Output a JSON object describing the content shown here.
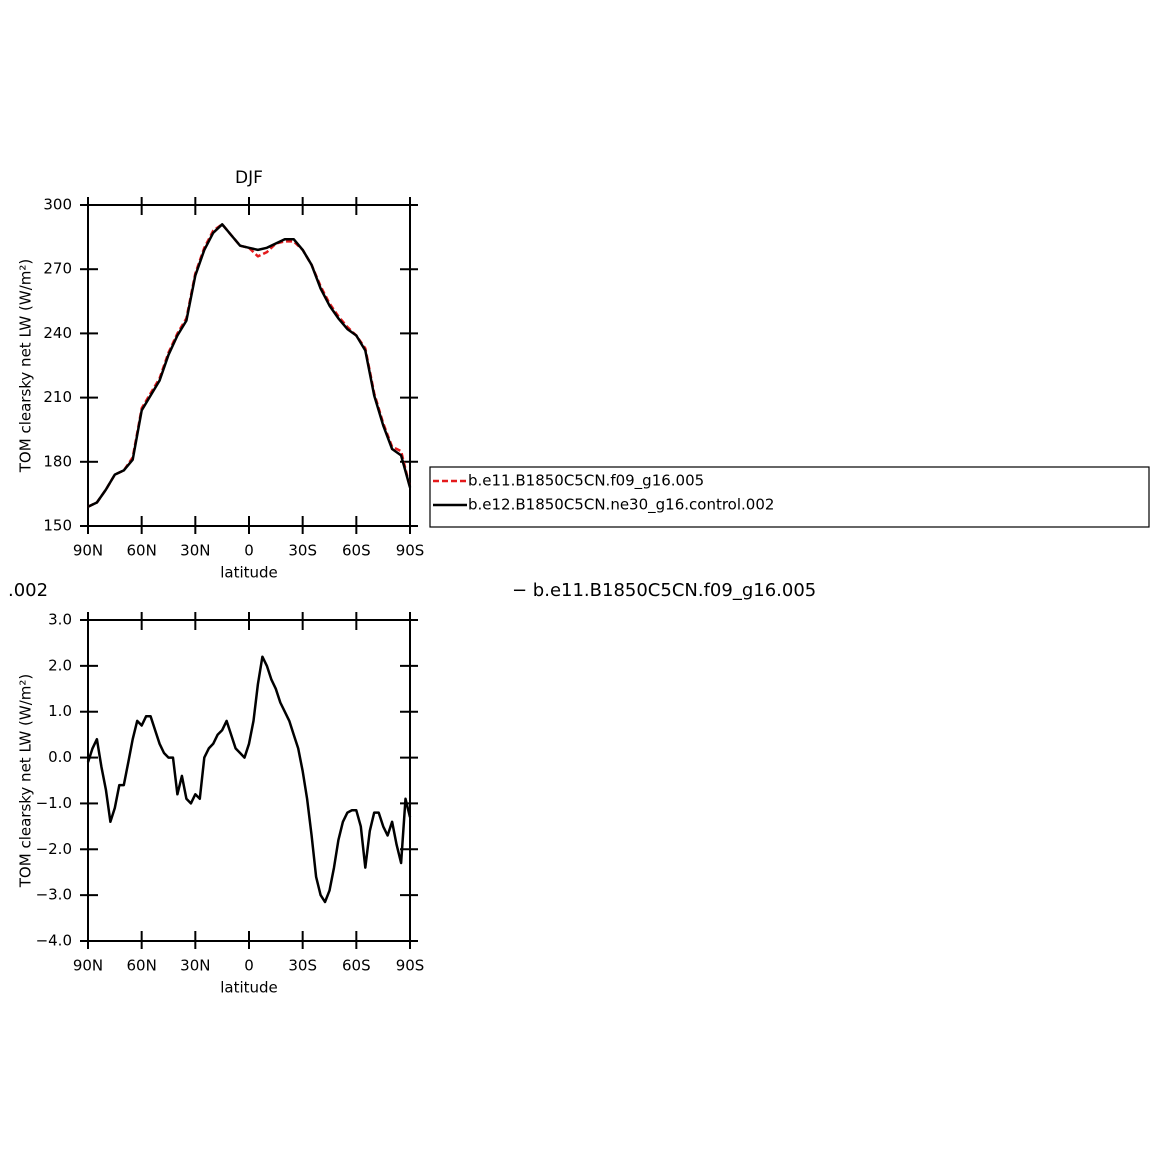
{
  "chart_data": [
    {
      "type": "line",
      "title": "DJF",
      "xlabel": "latitude",
      "ylabel": "TOM clearsky net LW (W/m²)",
      "x": [
        90,
        85,
        80,
        75,
        70,
        65,
        60,
        55,
        50,
        45,
        40,
        35,
        30,
        25,
        20,
        15,
        10,
        5,
        0,
        -5,
        -10,
        -15,
        -20,
        -25,
        -30,
        -35,
        -40,
        -45,
        -50,
        -55,
        -60,
        -65,
        -70,
        -75,
        -80,
        -85,
        -90
      ],
      "series": [
        {
          "name": "b.e11.B1850C5CN.f09_g16.005",
          "color": "#e41a1c",
          "style": "dashed",
          "values": [
            159,
            161,
            167,
            174,
            176,
            182,
            205,
            212,
            219,
            231,
            240,
            247,
            268,
            280,
            288,
            291,
            286,
            281,
            280,
            276,
            278,
            282,
            283,
            283,
            279,
            272,
            262,
            254,
            248,
            243,
            239,
            233,
            212,
            198,
            187,
            185,
            168
          ]
        },
        {
          "name": "b.e12.B1850C5CN.ne30_g16.control.002",
          "color": "#000000",
          "style": "solid",
          "values": [
            159,
            161,
            167,
            174,
            176,
            181,
            204,
            211,
            218,
            230,
            239,
            246,
            267,
            279,
            287,
            291,
            286,
            281,
            280,
            279,
            280,
            282,
            284,
            284,
            279,
            272,
            261,
            253,
            247,
            242,
            239,
            232,
            211,
            197,
            186,
            183,
            168
          ]
        }
      ],
      "xlim": [
        90,
        -90
      ],
      "xticks": [
        {
          "value": 90,
          "label": "90N"
        },
        {
          "value": 60,
          "label": "60N"
        },
        {
          "value": 30,
          "label": "30N"
        },
        0,
        {
          "value": -30,
          "label": "30S"
        },
        {
          "value": -60,
          "label": "60S"
        },
        {
          "value": -90,
          "label": "90S"
        }
      ],
      "ylim": [
        150,
        300
      ],
      "yticks": [
        150,
        180,
        210,
        240,
        270,
        300
      ],
      "legend": "right"
    },
    {
      "type": "line",
      "xlabel": "latitude",
      "ylabel": "TOM clearsky net LW (W/m²)",
      "annotations": [
        ".002",
        "−  b.e11.B1850C5CN.f09_g16.005"
      ],
      "x": [
        90,
        87.5,
        85,
        82.5,
        80,
        77.5,
        75,
        72.5,
        70,
        67.5,
        65,
        62.5,
        60,
        57.5,
        55,
        52.5,
        50,
        47.5,
        45,
        42.5,
        40,
        37.5,
        35,
        32.5,
        30,
        27.5,
        25,
        22.5,
        20,
        17.5,
        15,
        12.5,
        10,
        7.5,
        5,
        2.5,
        0,
        -2.5,
        -5,
        -7.5,
        -10,
        -12.5,
        -15,
        -17.5,
        -20,
        -22.5,
        -25,
        -27.5,
        -30,
        -32.5,
        -35,
        -37.5,
        -40,
        -42.5,
        -45,
        -47.5,
        -50,
        -52.5,
        -55,
        -57.5,
        -60,
        -62.5,
        -65,
        -67.5,
        -70,
        -72.5,
        -75,
        -77.5,
        -80,
        -82.5,
        -85,
        -87.5,
        -90
      ],
      "values": [
        -0.1,
        0.2,
        0.4,
        -0.2,
        -0.7,
        -1.4,
        -1.1,
        -0.6,
        -0.6,
        -0.1,
        0.4,
        0.8,
        0.7,
        0.9,
        0.9,
        0.6,
        0.3,
        0.1,
        0.0,
        0.0,
        -0.8,
        -0.4,
        -0.9,
        -1.0,
        -0.8,
        -0.9,
        0.0,
        0.2,
        0.3,
        0.5,
        0.6,
        0.8,
        0.5,
        0.2,
        0.1,
        0.0,
        0.3,
        0.8,
        1.6,
        2.2,
        2.0,
        1.7,
        1.5,
        1.2,
        1.0,
        0.8,
        0.5,
        0.2,
        -0.3,
        -0.9,
        -1.7,
        -2.6,
        -3.0,
        -3.15,
        -2.9,
        -2.4,
        -1.8,
        -1.4,
        -1.2,
        -1.15,
        -1.15,
        -1.5,
        -2.4,
        -1.6,
        -1.2,
        -1.2,
        -1.5,
        -1.7,
        -1.4,
        -1.9,
        -2.3,
        -0.9,
        -1.3
      ],
      "color": "#000000",
      "xlim": [
        90,
        -90
      ],
      "xticks": [
        {
          "value": 90,
          "label": "90N"
        },
        {
          "value": 60,
          "label": "60N"
        },
        {
          "value": 30,
          "label": "30N"
        },
        0,
        {
          "value": -30,
          "label": "30S"
        },
        {
          "value": -60,
          "label": "60S"
        },
        {
          "value": -90,
          "label": "90S"
        }
      ],
      "ylim": [
        -4,
        3
      ],
      "yticks": [
        {
          "value": -4,
          "label": "−4.0"
        },
        {
          "value": -3,
          "label": "−3.0"
        },
        {
          "value": -2,
          "label": "−2.0"
        },
        {
          "value": -1,
          "label": "−1.0"
        },
        {
          "value": 0,
          "label": "0.0"
        },
        {
          "value": 1,
          "label": "1.0"
        },
        {
          "value": 2,
          "label": "2.0"
        },
        {
          "value": 3,
          "label": "3.0"
        }
      ]
    }
  ]
}
